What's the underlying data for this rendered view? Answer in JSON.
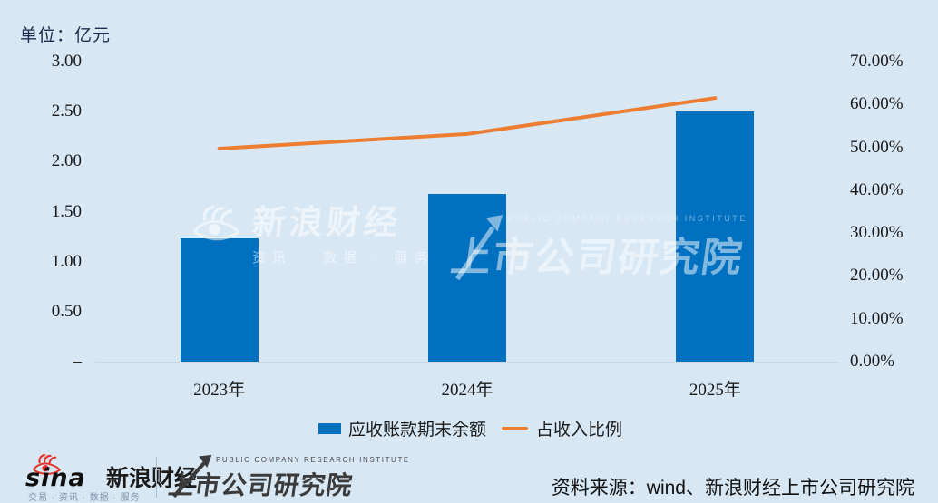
{
  "background_color": "#d7e7f4",
  "unit_label": "单位：亿元",
  "chart_data": {
    "type": "bar",
    "subtype": "bar+line combo, dual axis",
    "categories": [
      "2023年",
      "2024年",
      "2025年"
    ],
    "series": [
      {
        "name": "应收账款期末余额",
        "type": "bar",
        "axis": "left",
        "values": [
          1.23,
          1.68,
          2.5
        ],
        "color": "#0070c0"
      },
      {
        "name": "占收入比例",
        "type": "line",
        "axis": "right",
        "values": [
          49.7,
          53.1,
          61.5
        ],
        "color": "#ed7d31"
      }
    ],
    "title": "",
    "unit": "单位：亿元",
    "left_axis": {
      "min": 0,
      "max": 3.0,
      "tick_labels": [
        "3.00",
        "2.50",
        "2.00",
        "1.50",
        "1.00",
        "0.50",
        "–"
      ]
    },
    "right_axis": {
      "min": 0,
      "max": 70.0,
      "tick_labels": [
        "70.00%",
        "60.00%",
        "50.00%",
        "40.00%",
        "30.00%",
        "20.00%",
        "10.00%",
        "0.00%"
      ]
    },
    "grid": false,
    "legend_position": "bottom-center"
  },
  "legend": {
    "bar_label": "应收账款期末余额",
    "line_label": "占收入比例"
  },
  "watermarks": {
    "sina": {
      "title": "新浪财经",
      "subtitle": "资讯 · 数据 · 服务"
    },
    "pcri": {
      "title": "上市公司研究院",
      "subtitle": "PUBLIC COMPANY RESEARCH INSTITUTE"
    }
  },
  "footer": {
    "sina_brand": "sina",
    "sina_name": "新浪财经",
    "sina_tagline": "交易 · 资讯 · 数据 · 服务",
    "pcri_name": "上市公司研究院",
    "pcri_subtitle": "PUBLIC COMPANY RESEARCH INSTITUTE",
    "source": "资料来源：wind、新浪财经上市公司研究院"
  },
  "colors": {
    "bar": "#0070c0",
    "line": "#ed7d31",
    "background": "#d7e7f4",
    "sina_red": "#e6342a"
  }
}
